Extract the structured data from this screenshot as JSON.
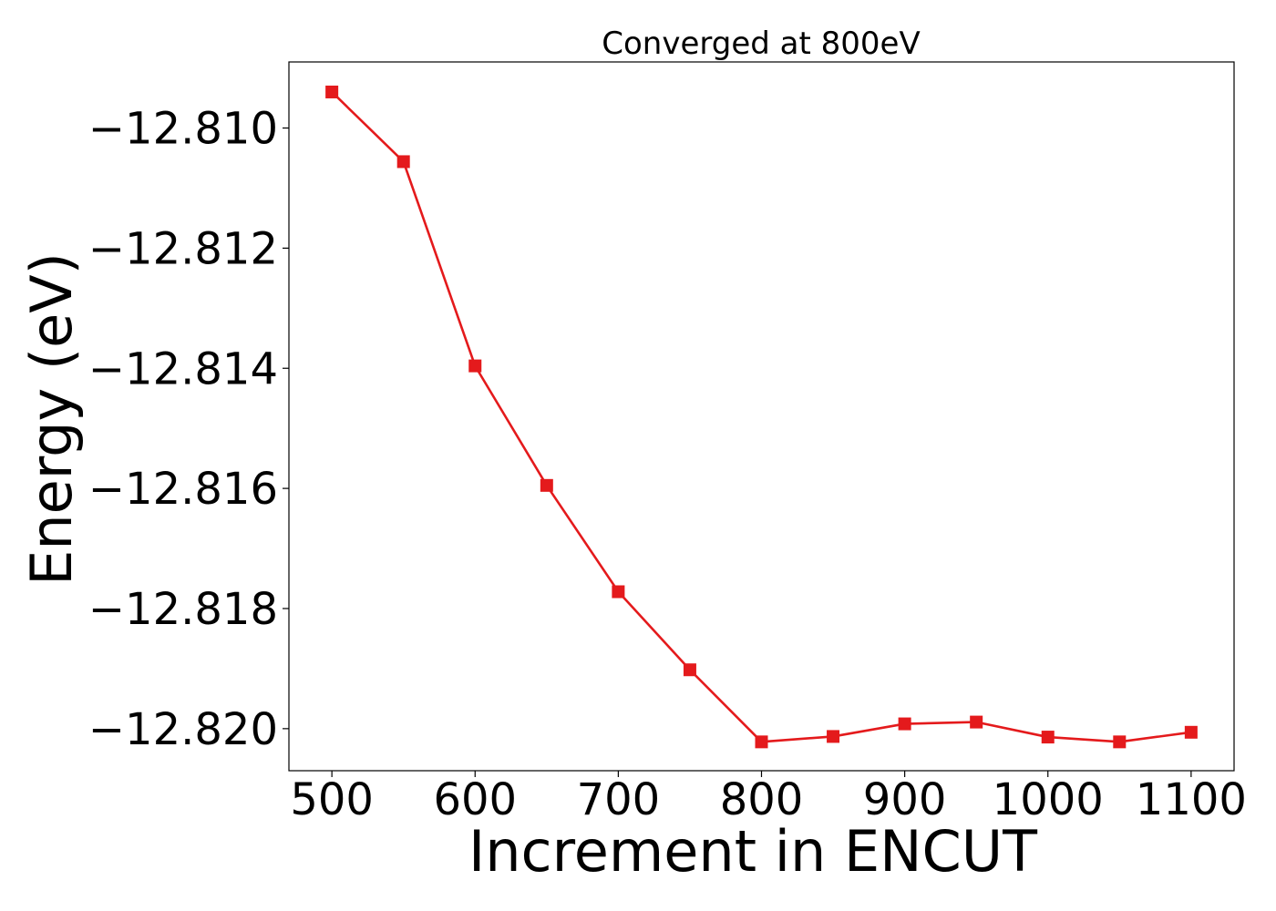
{
  "chart_data": {
    "type": "line",
    "title": "Converged at 800eV",
    "xlabel": "Increment in ENCUT",
    "ylabel": "Energy (eV)",
    "xlim": [
      470,
      1130
    ],
    "ylim": [
      -12.8207,
      -12.8089
    ],
    "x_ticks": [
      500,
      600,
      700,
      800,
      900,
      1000,
      1100
    ],
    "x_tick_labels": [
      "500",
      "600",
      "700",
      "800",
      "900",
      "1000",
      "1100"
    ],
    "y_ticks": [
      -12.81,
      -12.812,
      -12.814,
      -12.816,
      -12.818,
      -12.82
    ],
    "y_tick_labels": [
      "−12.810",
      "−12.812",
      "−12.814",
      "−12.816",
      "−12.818",
      "−12.820"
    ],
    "grid": false,
    "series": [
      {
        "color": "#e41a1c",
        "marker": "square",
        "x": [
          500,
          550,
          600,
          650,
          700,
          750,
          800,
          850,
          900,
          950,
          1000,
          1050,
          1100
        ],
        "y": [
          -12.8094,
          -12.81056,
          -12.81396,
          -12.81595,
          -12.81772,
          -12.81902,
          -12.82022,
          -12.82013,
          -12.81992,
          -12.81989,
          -12.82014,
          -12.82022,
          -12.82006
        ]
      }
    ]
  }
}
